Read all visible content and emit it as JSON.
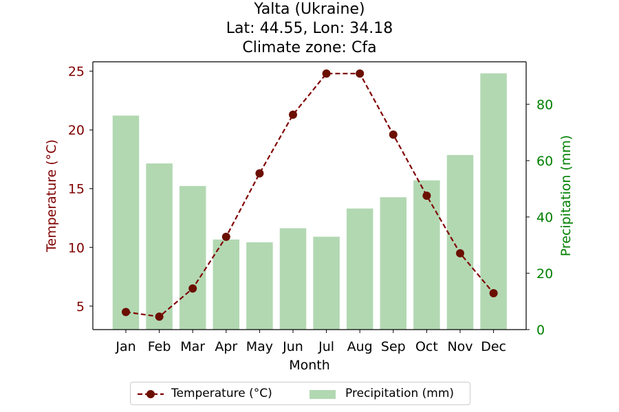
{
  "title": {
    "line1": "Yalta (Ukraine)",
    "line2": "Lat: 44.55, Lon: 34.18",
    "line3": "Climate zone: Cfa"
  },
  "legend": {
    "temperature": "Temperature (°C)",
    "precipitation": "Precipitation (mm)"
  },
  "colors": {
    "temperature": "#800000",
    "temperature_marker": "#6b0f00",
    "precipitation": "#b2d8b2",
    "precip_axis": "#008000"
  },
  "chart_data": {
    "type": "bar",
    "categories": [
      "Jan",
      "Feb",
      "Mar",
      "Apr",
      "May",
      "Jun",
      "Jul",
      "Aug",
      "Sep",
      "Oct",
      "Nov",
      "Dec"
    ],
    "xlabel": "Month",
    "series": [
      {
        "name": "Temperature (°C)",
        "type": "line",
        "axis": "left",
        "values": [
          4.5,
          4.1,
          6.5,
          10.9,
          16.3,
          21.3,
          24.8,
          24.8,
          19.6,
          14.4,
          9.5,
          6.1
        ]
      },
      {
        "name": "Precipitation (mm)",
        "type": "bar",
        "axis": "right",
        "values": [
          76,
          59,
          51,
          32,
          31,
          36,
          33,
          43,
          47,
          53,
          62,
          91
        ]
      }
    ],
    "y_left": {
      "label": "Temperature (°C)",
      "range": [
        3.0,
        25.8
      ],
      "ticks": [
        5,
        10,
        15,
        20,
        25
      ]
    },
    "y_right": {
      "label": "Precipitation (mm)",
      "range": [
        0,
        95.1
      ],
      "ticks": [
        0,
        20,
        40,
        60,
        80
      ]
    },
    "grid": false,
    "legend_position": "bottom-center"
  }
}
